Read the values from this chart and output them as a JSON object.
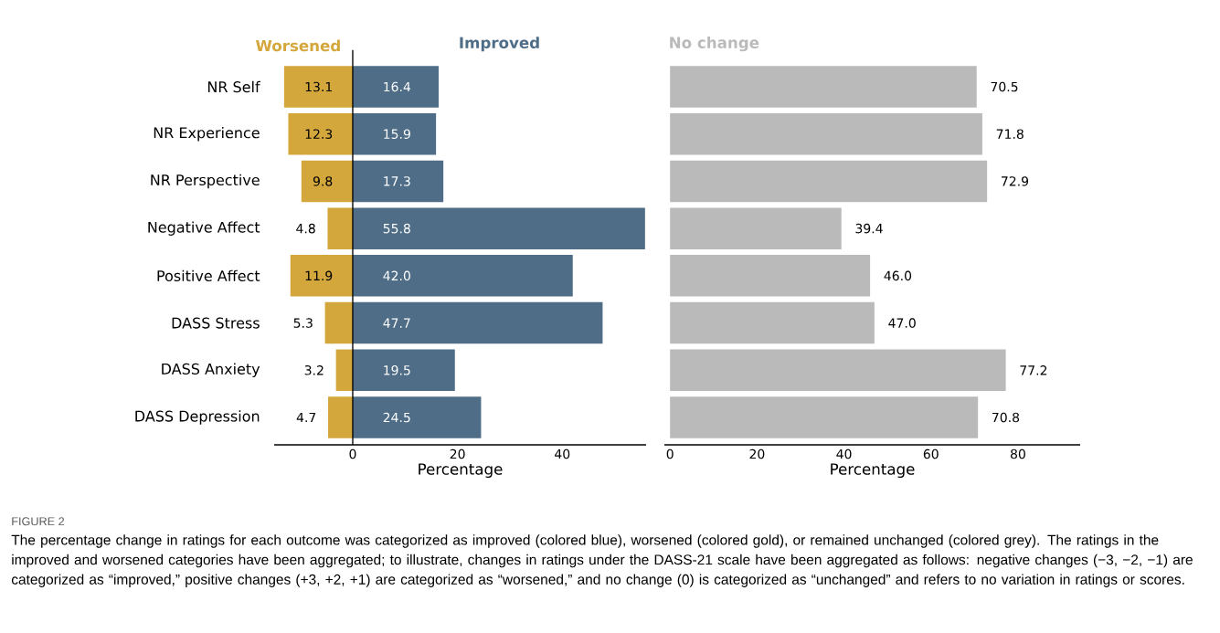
{
  "chart_data": [
    {
      "type": "bar",
      "orientation": "horizontal",
      "legend": "top",
      "xlabel": "Percentage",
      "xlim": [
        -15,
        56
      ],
      "xticks": [
        0,
        20,
        40
      ],
      "categories": [
        "NR Self",
        "NR Experience",
        "NR Perspective",
        "Negative Affect",
        "Positive Affect",
        "DASS Stress",
        "DASS Anxiety",
        "DASS Depression"
      ],
      "series": [
        {
          "name": "Worsened",
          "color": "#d4a73c",
          "values": [
            13.1,
            12.3,
            9.8,
            4.8,
            11.9,
            5.3,
            3.2,
            4.7
          ],
          "base": [
            -13.1,
            -12.3,
            -9.8,
            -4.8,
            -11.9,
            -5.3,
            -3.2,
            -4.7
          ],
          "value_labels": [
            "13.1",
            "12.3",
            "9.8",
            "4.8",
            "11.9",
            "5.3",
            "3.2",
            "4.7"
          ]
        },
        {
          "name": "Improved",
          "color": "#4f6d87",
          "values": [
            16.4,
            15.9,
            17.3,
            55.8,
            42.0,
            47.7,
            19.5,
            24.5
          ],
          "value_labels": [
            "16.4",
            "15.9",
            "17.3",
            "55.8",
            "42.0",
            "47.7",
            "19.5",
            "24.5"
          ]
        }
      ],
      "annotations": [
        "FIGURE 2",
        "The percentage change in ratings for each outcome was categorized as improved (colored blue), worsened (colored gold), or remained unchanged (colored grey). The ratings in the improved and worsened categories have been aggregated; to illustrate, changes in ratings under the DASS-21 scale have been aggregated as follows: negative changes (−3, −2, −1) are categorized as “improved,” positive changes (+3, +2, +1) are categorized as “worsened,” and no change (0) is categorized as “unchanged” and refers to no variation in ratings or scores."
      ]
    },
    {
      "type": "bar",
      "orientation": "horizontal",
      "legend": "top",
      "xlabel": "Percentage",
      "xlim": [
        -1.3,
        94.3
      ],
      "xticks": [
        0,
        20,
        40,
        60,
        80
      ],
      "tick_labels": "x",
      "categories": [
        null,
        null,
        null,
        null,
        null,
        null,
        null,
        null
      ],
      "series": [
        {
          "name": "No change",
          "color": "#bababa",
          "values": [
            70.5,
            71.8,
            72.9,
            39.4,
            46.0,
            47.0,
            77.2,
            70.8
          ],
          "value_labels": [
            "70.5",
            "71.8",
            "72.9",
            "39.4",
            "46.0",
            "47.0",
            "77.2",
            "70.8"
          ]
        }
      ]
    }
  ]
}
